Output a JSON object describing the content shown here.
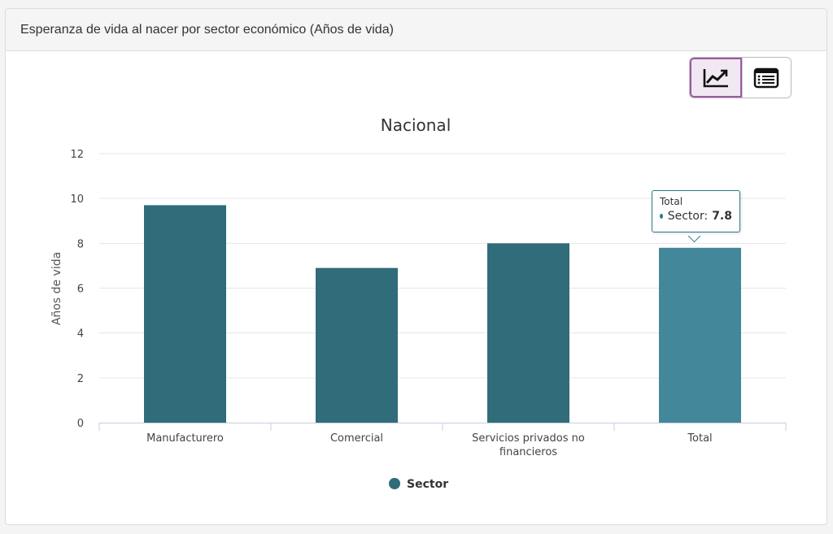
{
  "panel": {
    "title": "Esperanza de vida al nacer por sector económico (Años de vida)"
  },
  "toolbar": {
    "chart_icon": "line-chart-icon",
    "table_icon": "table-list-icon",
    "active": "chart"
  },
  "colors": {
    "bar": "#306c7a",
    "bar_highlight": "#43889a",
    "grid": "#e6e6e6",
    "axis_line": "#c8cce0",
    "text": "#444444"
  },
  "chart_data": {
    "type": "bar",
    "title": "Nacional",
    "xlabel": "",
    "ylabel": "Años de vida",
    "categories": [
      "Manufacturero",
      "Comercial",
      "Servicios privados no financieros",
      "Total"
    ],
    "series": [
      {
        "name": "Sector",
        "values": [
          9.7,
          6.9,
          8.0,
          7.8
        ]
      }
    ],
    "ylim": [
      0,
      12
    ],
    "yticks": [
      0,
      2,
      4,
      6,
      8,
      10,
      12
    ],
    "grid": true,
    "legend": "bottom-center",
    "highlighted_index": 3
  },
  "tooltip": {
    "title": "Total",
    "series_label": "Sector:",
    "value": "7.8"
  }
}
